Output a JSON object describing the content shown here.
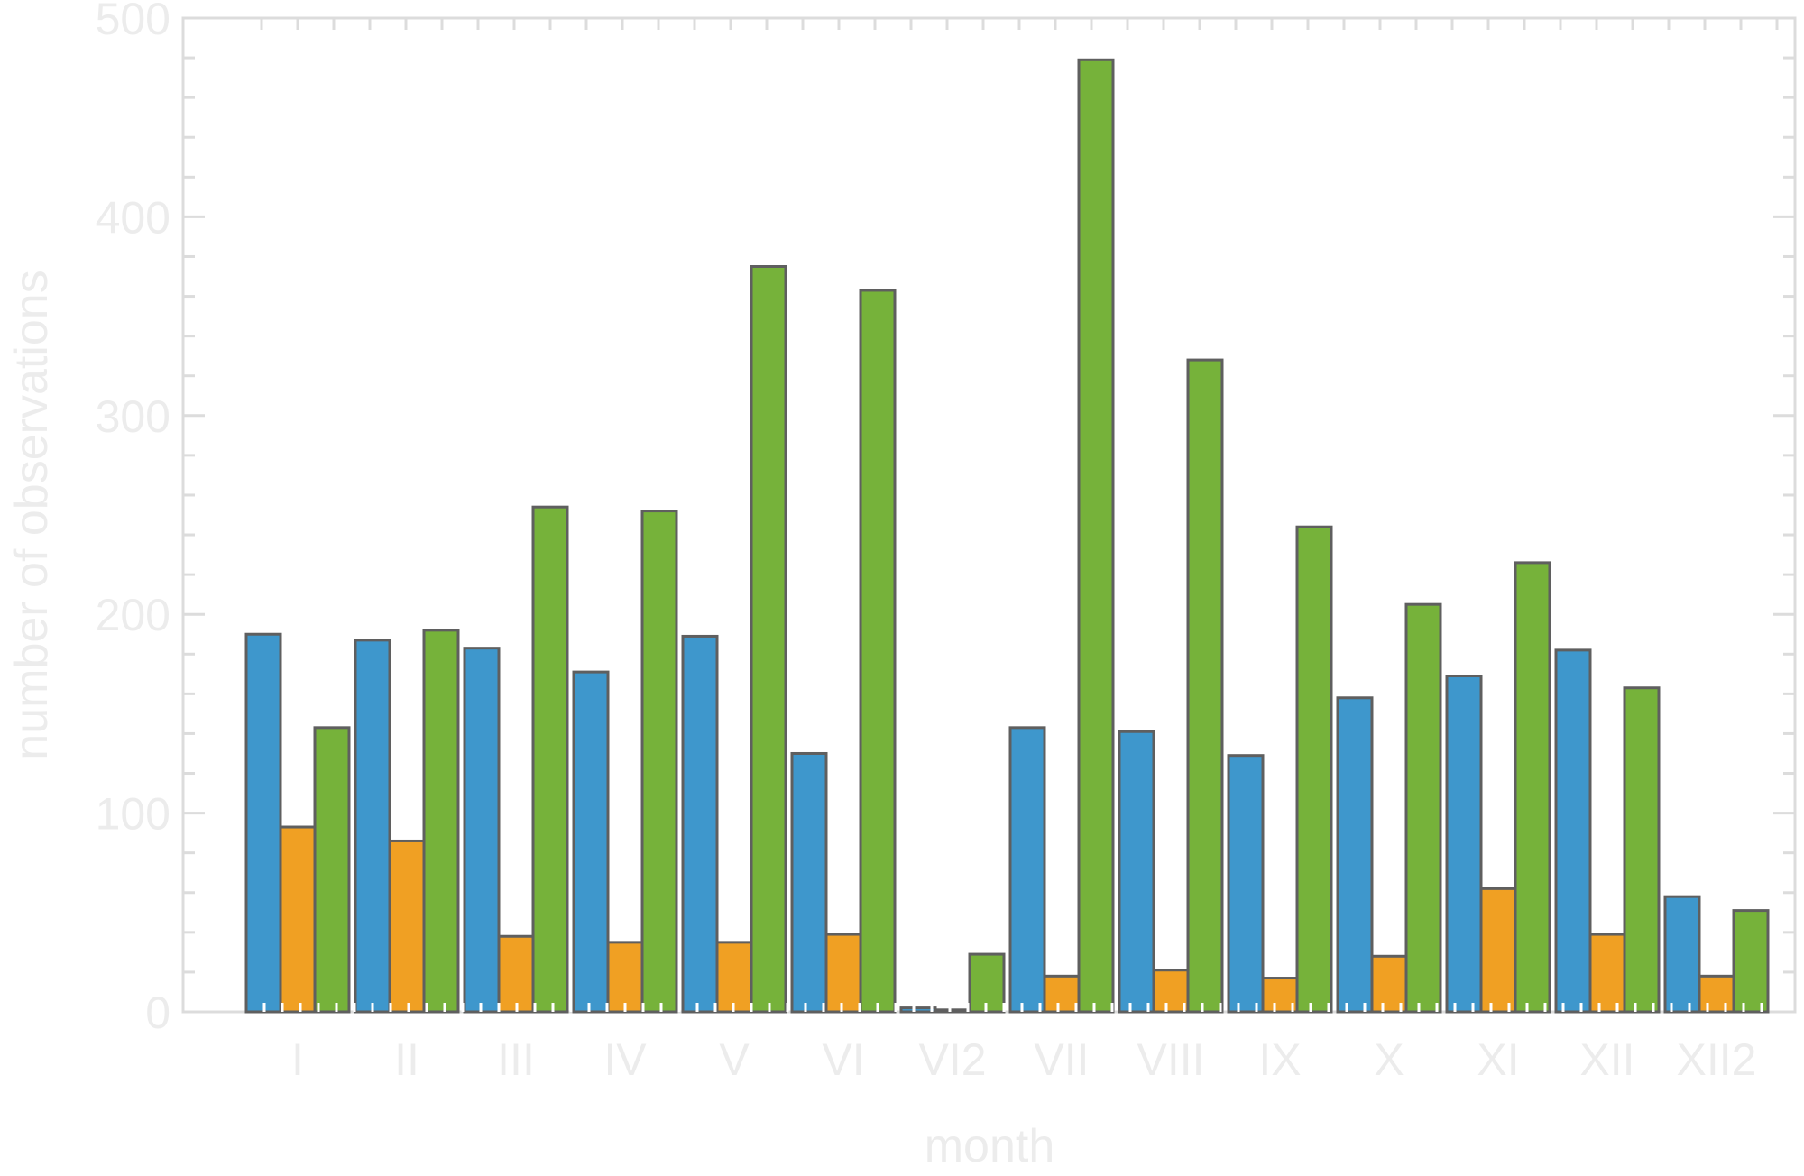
{
  "chart_data": {
    "type": "bar",
    "title": "",
    "xlabel": "month",
    "ylabel": "number of observations",
    "categories": [
      "I",
      "II",
      "III",
      "IV",
      "V",
      "VI",
      "VI2",
      "VII",
      "VIII",
      "IX",
      "X",
      "XI",
      "XII",
      "XII2"
    ],
    "series": [
      {
        "color": "#3e97cc",
        "values": [
          190,
          187,
          183,
          171,
          189,
          130,
          2,
          143,
          141,
          129,
          158,
          169,
          182,
          58
        ]
      },
      {
        "color": "#f0a023",
        "values": [
          93,
          86,
          38,
          35,
          35,
          39,
          1,
          18,
          21,
          17,
          28,
          62,
          39,
          18
        ]
      },
      {
        "color": "#76b23a",
        "values": [
          143,
          192,
          254,
          252,
          375,
          363,
          29,
          479,
          328,
          244,
          205,
          226,
          163,
          51
        ]
      }
    ],
    "ylim": [
      0,
      500
    ],
    "yticks": [
      0,
      100,
      200,
      300,
      400,
      500
    ],
    "legend": "none",
    "grid": false,
    "colors": {
      "axis": "#dcdcdc",
      "text": "#ececec",
      "bar_stroke": "#5f5f5f"
    }
  }
}
